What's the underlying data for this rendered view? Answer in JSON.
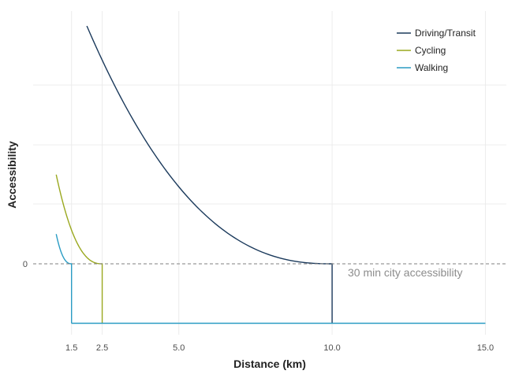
{
  "chart_data": {
    "type": "line",
    "xlabel": "Distance (km)",
    "ylabel": "Accessibility",
    "x_ticks": [
      1.5,
      2.5,
      5.0,
      10.0,
      15.0
    ],
    "x_tick_labels": [
      "1.5",
      "2.5",
      "5.0",
      "10.0",
      "15.0"
    ],
    "y_ticks": [
      0
    ],
    "y_tick_labels": [
      "0"
    ],
    "xlim": [
      0.9,
      15.6
    ],
    "grid": true,
    "legend_position": "top-right",
    "annotation": "30 min city accessibility",
    "threshold_y": 0,
    "series": [
      {
        "name": "Driving/Transit",
        "color": "#1b3a5c",
        "x_start": 2.0,
        "x_end": 10.0,
        "y_at_start": 4.0,
        "drop_to_y": -1.0
      },
      {
        "name": "Cycling",
        "color": "#9aa81f",
        "x_start": 1.0,
        "x_end": 2.5,
        "y_at_start": 1.5,
        "drop_to_y": -1.0
      },
      {
        "name": "Walking",
        "color": "#2a9cc4",
        "x_start": 1.0,
        "x_end": 1.5,
        "y_at_start": 0.5,
        "drop_to_y": -1.0
      }
    ],
    "baseline": {
      "x_start": 1.5,
      "x_end": 15.0,
      "y": -1.0,
      "color": "#2a9cc4"
    }
  }
}
